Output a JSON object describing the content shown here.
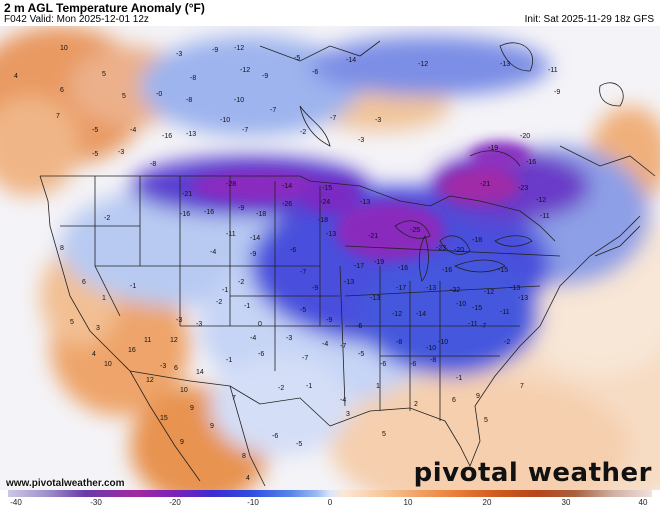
{
  "header": {
    "title": "2 m AGL Temperature Anomaly (°F)",
    "valid": "F042 Valid: Mon 2025-12-01 12z",
    "init": "Init: Sat 2025-11-29 18z GFS"
  },
  "footer": {
    "site": "www.pivotalweather.com",
    "logo": "pivotal weather"
  },
  "colorbar": {
    "ticks": [
      "-40",
      "-30",
      "-20",
      "-10",
      "0",
      "10",
      "20",
      "30",
      "40"
    ],
    "colors": {
      "strong_cold": "#7a22b8",
      "cold": "#2e4fe0",
      "cool": "#9dbcf2",
      "neutral": "#f2f2f6",
      "warm": "#f1a062",
      "hot": "#cf5a1f"
    }
  },
  "map": {
    "anomaly_labels": [
      "10",
      "5",
      "4",
      "6",
      "7",
      "5",
      "-0",
      "-8",
      "-3",
      "-8",
      "-9",
      "-12",
      "-12",
      "-6",
      "-5",
      "-9",
      "-10",
      "-7",
      "-14",
      "-10",
      "-13",
      "-12",
      "-3",
      "-16",
      "-7",
      "-7",
      "-5",
      "-4",
      "-3",
      "-2",
      "-11",
      "-13",
      "-9",
      "-3",
      "-5",
      "-8",
      "-16",
      "-19",
      "-20",
      "-21",
      "-24",
      "-26",
      "-18",
      "-14",
      "-15",
      "-23",
      "-28",
      "-21",
      "-16",
      "-18",
      "-16",
      "-12",
      "-13",
      "-14",
      "-13",
      "-17",
      "-19",
      "-21",
      "-23",
      "-25",
      "-20",
      "-18",
      "-16",
      "-13",
      "-11",
      "-15",
      "-9",
      "-6",
      "-7",
      "-4",
      "-13",
      "-9",
      "-11",
      "-9",
      "-16",
      "-13",
      "-17",
      "-12",
      "-10",
      "-12",
      "-13",
      "-32",
      "-11",
      "-9",
      "-6",
      "-5",
      "-14",
      "-15",
      "-10",
      "-8",
      "-6",
      "-5",
      "-6",
      "-7",
      "-11",
      "-13",
      "-10",
      "-8",
      "-3",
      "-1",
      "-2",
      "-1",
      "-4",
      "-2",
      "-3",
      "1",
      "-1",
      "-2",
      "0",
      "-6",
      "-7",
      "-3",
      "-1",
      "-4",
      "-2",
      "-7",
      "-4",
      "-1",
      "-6",
      "-5",
      "-3",
      "-2",
      "-1",
      "1",
      "2",
      "3",
      "5",
      "6",
      "7",
      "8",
      "10",
      "12",
      "11",
      "16",
      "15",
      "14",
      "9",
      "9",
      "6",
      "7",
      "9",
      "5",
      "5",
      "6",
      "4",
      "4",
      "3",
      "12",
      "10",
      "9",
      "8",
      "7",
      "2",
      "-4"
    ]
  }
}
